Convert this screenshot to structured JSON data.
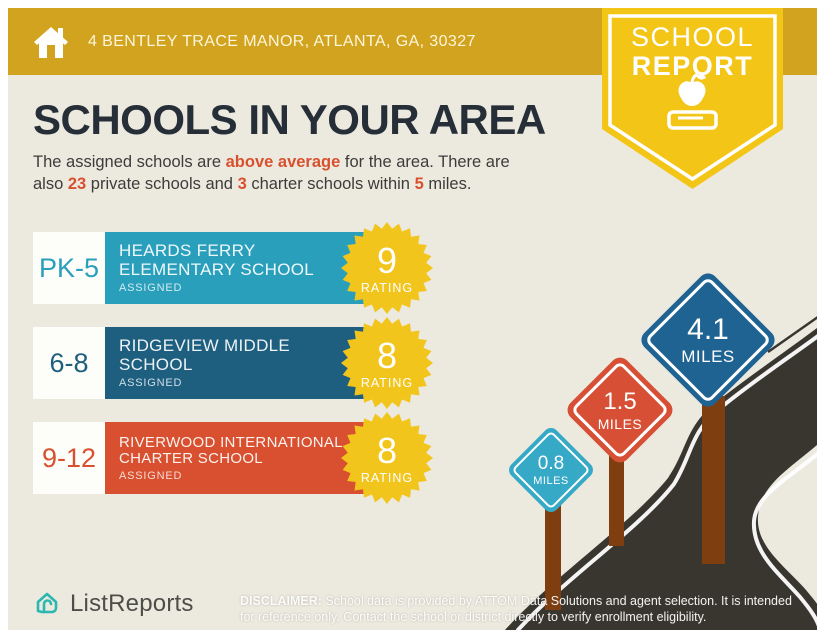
{
  "header": {
    "address": "4 BENTLEY TRACE MANOR, ATLANTA, GA, 30327"
  },
  "ribbon": {
    "line1": "SCHOOL",
    "line2": "REPORT"
  },
  "title": "SCHOOLS IN YOUR AREA",
  "subtitle": {
    "s0": "The assigned schools are ",
    "s1": "above average",
    "s2": " for the area. There are",
    "s3": "also ",
    "s4": "23",
    "s5": " private schools and ",
    "s6": "3",
    "s7": " charter schools within ",
    "s8": "5",
    "s9": " miles."
  },
  "schools": [
    {
      "grades": "PK-5",
      "name_line1": "HEARDS FERRY",
      "name_line2": "ELEMENTARY SCHOOL",
      "status": "ASSIGNED",
      "rating": "9",
      "rating_label": "RATING",
      "color": "#2a9fbc"
    },
    {
      "grades": "6-8",
      "name_line1": "RIDGEVIEW MIDDLE",
      "name_line2": "SCHOOL",
      "status": "ASSIGNED",
      "rating": "8",
      "rating_label": "RATING",
      "color": "#1e5f80"
    },
    {
      "grades": "9-12",
      "name_line1": "RIVERWOOD INTERNATIONAL",
      "name_line2": "CHARTER SCHOOL",
      "status": "ASSIGNED",
      "rating": "8",
      "rating_label": "RATING",
      "color": "#d8502f"
    }
  ],
  "distance_signs": [
    {
      "value": "0.8",
      "unit": "MILES",
      "color": "#36a9c6"
    },
    {
      "value": "1.5",
      "unit": "MILES",
      "color": "#d75035"
    },
    {
      "value": "4.1",
      "unit": "MILES",
      "color": "#1f6392"
    }
  ],
  "footer": {
    "brand": "ListReports",
    "disclaimer_label": "DISCLAIMER:",
    "disclaimer_text": " School data is provided by ATTOM Data Solutions and agent selection. It is intended for reference only. Contact the school or district directly to verify enrollment eligibility."
  },
  "colors": {
    "header_gold": "#d2a31e",
    "ribbon_yellow": "#f3c516",
    "background_cream": "#ece9df",
    "burst_yellow": "#f2c51d",
    "road_dark": "#38362f",
    "post_brown": "#7e3e10",
    "accent_red": "#d8512f",
    "title_navy": "#262f38",
    "brand_teal": "#2bb8b1"
  }
}
